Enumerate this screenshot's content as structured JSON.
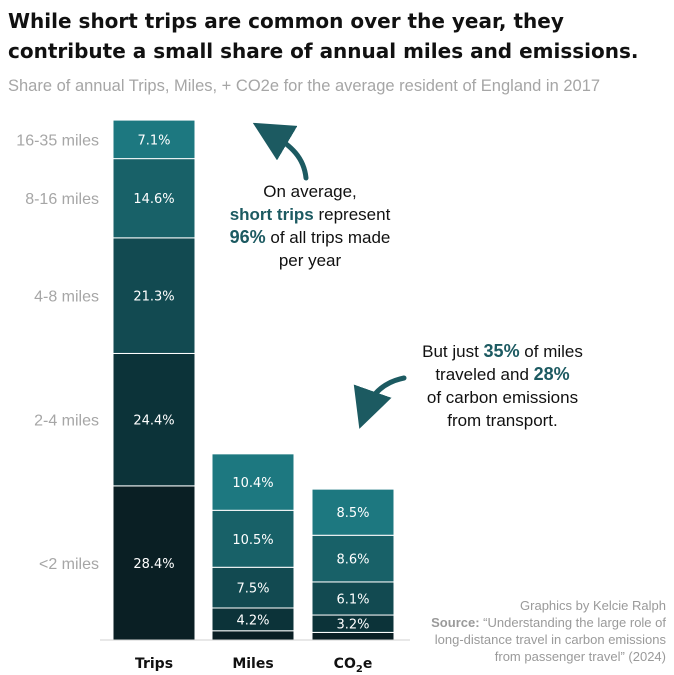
{
  "chart_data": {
    "type": "bar",
    "stacked": true,
    "title": "While short trips are common over the year, they contribute a small share of annual miles and emissions.",
    "subtitle": "Share of annual Trips, Miles, + CO2e for the average resident of England in 2017",
    "categories": [
      "Trips",
      "Miles",
      "CO2e"
    ],
    "category_labels": [
      {
        "base": "Trips",
        "sub": ""
      },
      {
        "base": "Miles",
        "sub": ""
      },
      {
        "base": "CO",
        "sub": "2",
        "tail": "e"
      }
    ],
    "y_unit": "share of all trips (%)",
    "segment_order": "bottom-to-top",
    "series": [
      {
        "name": "<2 miles",
        "color": "#0a1f24"
      },
      {
        "name": "2-4 miles",
        "color": "#0c3339"
      },
      {
        "name": "4-8 miles",
        "color": "#124a51"
      },
      {
        "name": "8-16 miles",
        "color": "#186168"
      },
      {
        "name": "16-35 miles",
        "color": "#1d7880"
      }
    ],
    "stacks": [
      {
        "category": "Trips",
        "values": [
          28.4,
          24.4,
          21.3,
          14.6,
          7.1
        ],
        "labels": [
          "28.4%",
          "24.4%",
          "21.3%",
          "14.6%",
          "7.1%"
        ]
      },
      {
        "category": "Miles",
        "values": [
          1.7,
          4.2,
          7.5,
          10.5,
          10.4
        ],
        "labels": [
          "",
          "4.2%",
          "7.5%",
          "10.5%",
          "10.4%"
        ]
      },
      {
        "category": "CO2e",
        "values": [
          1.4,
          3.2,
          6.1,
          8.6,
          8.5
        ],
        "labels": [
          "",
          "3.2%",
          "6.1%",
          "8.6%",
          "8.5%"
        ]
      }
    ],
    "ylim": [
      0,
      96
    ]
  },
  "annotations": {
    "first": {
      "line1": "On average,",
      "hl1": "short trips",
      "rest1": " represent",
      "hl2": "96%",
      "rest2": " of all trips made",
      "line4": "per year"
    },
    "second": {
      "pre1": "But just ",
      "hl1": "35%",
      "post1": " of miles",
      "pre2": "traveled and ",
      "hl2": "28%",
      "line3": "of carbon emissions",
      "line4": "from transport."
    }
  },
  "credit": {
    "byline": "Graphics by Kelcie Ralph",
    "source_label": "Source:",
    "source_line1": " “Understanding the large role of",
    "source_line2": "long-distance travel in carbon emissions",
    "source_line3": "from passenger travel” (2024)"
  }
}
